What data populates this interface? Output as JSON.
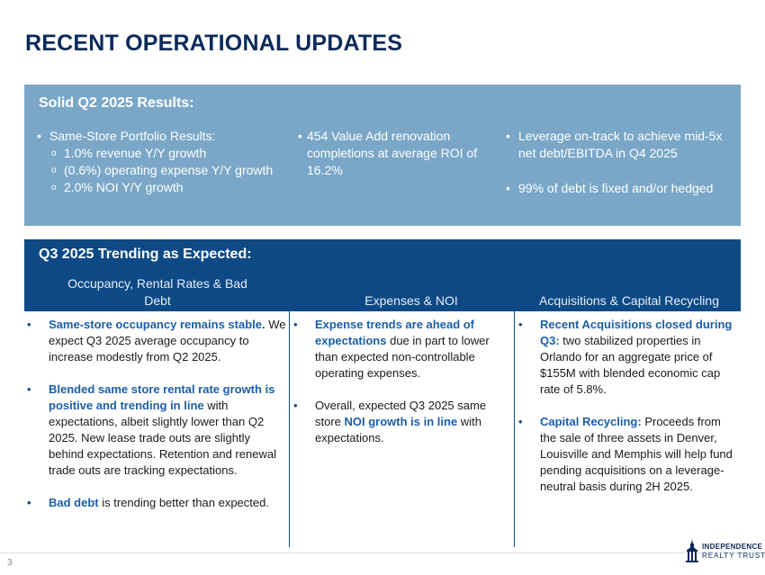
{
  "title": "RECENT OPERATIONAL UPDATES",
  "q2": {
    "heading": "Solid Q2 2025 Results:",
    "col1": {
      "bullet": "Same-Store Portfolio Results:",
      "sub": [
        "1.0% revenue Y/Y growth",
        "(0.6%) operating expense Y/Y growth",
        "2.0% NOI Y/Y growth"
      ]
    },
    "col2": {
      "bullet": "454 Value Add renovation completions at average ROI of 16.2%"
    },
    "col3": {
      "bullets": [
        "Leverage on-track to achieve mid-5x net debt/EBITDA in Q4 2025",
        "99% of debt is fixed and/or hedged"
      ]
    }
  },
  "q3": {
    "heading": "Q3 2025 Trending as Expected:",
    "col_headers": [
      "Occupancy, Rental Rates & Bad Debt",
      "Expenses & NOI",
      "Acquisitions & Capital Recycling"
    ],
    "col1": [
      {
        "hl": "Same-store occupancy remains stable.",
        "text": " We expect Q3 2025 average occupancy to increase modestly from Q2 2025."
      },
      {
        "hl": "Blended same store rental rate growth is positive and trending in line",
        "text": " with expectations, albeit slightly lower than Q2 2025. New lease trade outs are slightly behind expectations. Retention and renewal trade outs are tracking expectations."
      },
      {
        "hl": "Bad debt",
        "text": " is trending better than expected."
      }
    ],
    "col2": [
      {
        "hl": "Expense trends are ahead of expectations",
        "text": " due in part to lower than expected non-controllable operating expenses."
      },
      {
        "pre": "Overall, expected Q3 2025 same store ",
        "hl": "NOI growth is in line",
        "text": " with expectations."
      }
    ],
    "col3": [
      {
        "hl": "Recent Acquisitions closed during Q3:",
        "text": " two stabilized properties in Orlando for an aggregate price of $155M with blended economic cap rate of 5.8%."
      },
      {
        "hl": "Capital Recycling:",
        "text": " Proceeds from the sale of three assets in Denver, Louisville and Memphis will help fund pending acquisitions on a leverage-neutral basis during 2H 2025."
      }
    ]
  },
  "footer": {
    "page_number": "3",
    "logo_line1": "INDEPENDENCE",
    "logo_line2": "REALTY TRUST"
  },
  "glyphs": {
    "bullet": "•",
    "sub_bullet": "o"
  },
  "colors": {
    "title": "#0b2a5a",
    "q2_panel": "#7aa7c7",
    "q3_band": "#0d4a85",
    "highlight": "#1b5fa8"
  }
}
